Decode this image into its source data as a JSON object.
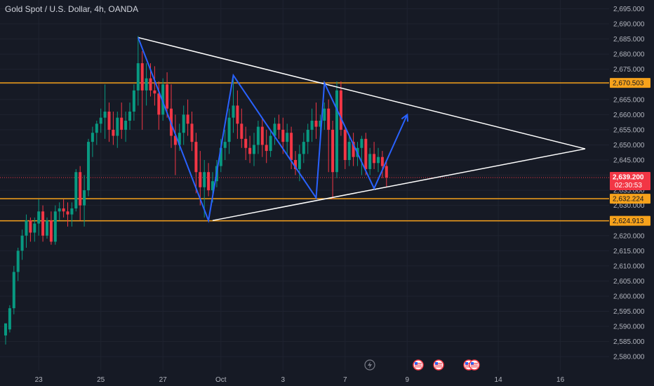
{
  "header": {
    "title": "Gold Spot / U.S. Dollar, 4h, OANDA"
  },
  "colors": {
    "background": "#161a25",
    "up": "#089981",
    "down": "#f23645",
    "level_line": "#f7a21b",
    "pattern_blue": "#2962ff",
    "triangle_white": "#ffffff",
    "axis_text": "#b2b5be"
  },
  "chart_data": {
    "type": "candlestick",
    "symbol": "Gold Spot / U.S. Dollar",
    "interval": "4h",
    "exchange": "OANDA",
    "ylim": [
      2578,
      2696
    ],
    "y_ticks": [
      "2,580.000",
      "2,585.000",
      "2,590.000",
      "2,595.000",
      "2,600.000",
      "2,605.000",
      "2,610.000",
      "2,615.000",
      "2,620.000",
      "2,625.000",
      "2,630.000",
      "2,635.000",
      "2,640.000",
      "2,645.000",
      "2,650.000",
      "2,655.000",
      "2,660.000",
      "2,665.000",
      "2,670.000",
      "2,675.000",
      "2,680.000",
      "2,685.000",
      "2,690.000",
      "2,695.000"
    ],
    "x_ticks": [
      {
        "label": "23",
        "bar": 8
      },
      {
        "label": "25",
        "bar": 23
      },
      {
        "label": "27",
        "bar": 38
      },
      {
        "label": "Oct",
        "bar": 52
      },
      {
        "label": "3",
        "bar": 67
      },
      {
        "label": "7",
        "bar": 82
      },
      {
        "label": "9",
        "bar": 97
      },
      {
        "label": "14",
        "bar": 119
      },
      {
        "label": "16",
        "bar": 134
      }
    ],
    "candles": [
      {
        "o": 2587,
        "h": 2590,
        "l": 2584,
        "c": 2591
      },
      {
        "o": 2589,
        "h": 2597,
        "l": 2588,
        "c": 2596
      },
      {
        "o": 2596,
        "h": 2610,
        "l": 2594,
        "c": 2608
      },
      {
        "o": 2608,
        "h": 2616,
        "l": 2605,
        "c": 2615
      },
      {
        "o": 2615,
        "h": 2622,
        "l": 2612,
        "c": 2620
      },
      {
        "o": 2620,
        "h": 2627,
        "l": 2616,
        "c": 2625
      },
      {
        "o": 2625,
        "h": 2626,
        "l": 2618,
        "c": 2621
      },
      {
        "o": 2621,
        "h": 2626,
        "l": 2618,
        "c": 2624
      },
      {
        "o": 2624,
        "h": 2632,
        "l": 2620,
        "c": 2628
      },
      {
        "o": 2628,
        "h": 2630,
        "l": 2618,
        "c": 2620
      },
      {
        "o": 2620,
        "h": 2626,
        "l": 2619,
        "c": 2625
      },
      {
        "o": 2625,
        "h": 2628,
        "l": 2617,
        "c": 2618
      },
      {
        "o": 2618,
        "h": 2630,
        "l": 2617,
        "c": 2628
      },
      {
        "o": 2628,
        "h": 2631,
        "l": 2625,
        "c": 2629
      },
      {
        "o": 2629,
        "h": 2632,
        "l": 2626,
        "c": 2628
      },
      {
        "o": 2628,
        "h": 2631,
        "l": 2623,
        "c": 2627
      },
      {
        "o": 2627,
        "h": 2631,
        "l": 2623,
        "c": 2629
      },
      {
        "o": 2629,
        "h": 2642,
        "l": 2628,
        "c": 2641
      },
      {
        "o": 2641,
        "h": 2643,
        "l": 2625,
        "c": 2630
      },
      {
        "o": 2630,
        "h": 2640,
        "l": 2623,
        "c": 2635
      },
      {
        "o": 2635,
        "h": 2652,
        "l": 2633,
        "c": 2651
      },
      {
        "o": 2651,
        "h": 2656,
        "l": 2646,
        "c": 2654
      },
      {
        "o": 2654,
        "h": 2658,
        "l": 2650,
        "c": 2657
      },
      {
        "o": 2657,
        "h": 2662,
        "l": 2654,
        "c": 2659
      },
      {
        "o": 2659,
        "h": 2670,
        "l": 2652,
        "c": 2661
      },
      {
        "o": 2661,
        "h": 2664,
        "l": 2651,
        "c": 2655
      },
      {
        "o": 2655,
        "h": 2661,
        "l": 2650,
        "c": 2653
      },
      {
        "o": 2653,
        "h": 2661,
        "l": 2649,
        "c": 2659
      },
      {
        "o": 2659,
        "h": 2664,
        "l": 2652,
        "c": 2655
      },
      {
        "o": 2655,
        "h": 2661,
        "l": 2651,
        "c": 2658
      },
      {
        "o": 2658,
        "h": 2664,
        "l": 2655,
        "c": 2661
      },
      {
        "o": 2661,
        "h": 2670,
        "l": 2658,
        "c": 2668
      },
      {
        "o": 2668,
        "h": 2686,
        "l": 2663,
        "c": 2677
      },
      {
        "o": 2677,
        "h": 2681,
        "l": 2655,
        "c": 2668
      },
      {
        "o": 2668,
        "h": 2677,
        "l": 2663,
        "c": 2672
      },
      {
        "o": 2672,
        "h": 2677,
        "l": 2666,
        "c": 2668
      },
      {
        "o": 2668,
        "h": 2676,
        "l": 2663,
        "c": 2667
      },
      {
        "o": 2667,
        "h": 2671,
        "l": 2655,
        "c": 2660
      },
      {
        "o": 2660,
        "h": 2672,
        "l": 2658,
        "c": 2670
      },
      {
        "o": 2670,
        "h": 2674,
        "l": 2659,
        "c": 2662
      },
      {
        "o": 2662,
        "h": 2670,
        "l": 2649,
        "c": 2653
      },
      {
        "o": 2653,
        "h": 2660,
        "l": 2640,
        "c": 2650
      },
      {
        "o": 2650,
        "h": 2657,
        "l": 2648,
        "c": 2654
      },
      {
        "o": 2654,
        "h": 2663,
        "l": 2650,
        "c": 2660
      },
      {
        "o": 2660,
        "h": 2665,
        "l": 2653,
        "c": 2657
      },
      {
        "o": 2657,
        "h": 2661,
        "l": 2648,
        "c": 2651
      },
      {
        "o": 2651,
        "h": 2654,
        "l": 2634,
        "c": 2641
      },
      {
        "o": 2641,
        "h": 2648,
        "l": 2630,
        "c": 2636
      },
      {
        "o": 2636,
        "h": 2645,
        "l": 2626,
        "c": 2641
      },
      {
        "o": 2641,
        "h": 2644,
        "l": 2633,
        "c": 2635
      },
      {
        "o": 2635,
        "h": 2641,
        "l": 2631,
        "c": 2638
      },
      {
        "o": 2638,
        "h": 2645,
        "l": 2636,
        "c": 2643
      },
      {
        "o": 2643,
        "h": 2652,
        "l": 2641,
        "c": 2649
      },
      {
        "o": 2649,
        "h": 2655,
        "l": 2645,
        "c": 2651
      },
      {
        "o": 2651,
        "h": 2662,
        "l": 2647,
        "c": 2659
      },
      {
        "o": 2659,
        "h": 2673,
        "l": 2654,
        "c": 2663
      },
      {
        "o": 2663,
        "h": 2668,
        "l": 2652,
        "c": 2657
      },
      {
        "o": 2657,
        "h": 2662,
        "l": 2649,
        "c": 2652
      },
      {
        "o": 2652,
        "h": 2656,
        "l": 2645,
        "c": 2649
      },
      {
        "o": 2649,
        "h": 2653,
        "l": 2644,
        "c": 2647
      },
      {
        "o": 2647,
        "h": 2654,
        "l": 2643,
        "c": 2650
      },
      {
        "o": 2650,
        "h": 2658,
        "l": 2647,
        "c": 2656
      },
      {
        "o": 2656,
        "h": 2659,
        "l": 2646,
        "c": 2650
      },
      {
        "o": 2650,
        "h": 2655,
        "l": 2644,
        "c": 2648
      },
      {
        "o": 2648,
        "h": 2655,
        "l": 2646,
        "c": 2653
      },
      {
        "o": 2653,
        "h": 2659,
        "l": 2650,
        "c": 2657
      },
      {
        "o": 2657,
        "h": 2660,
        "l": 2652,
        "c": 2655
      },
      {
        "o": 2655,
        "h": 2659,
        "l": 2647,
        "c": 2651
      },
      {
        "o": 2651,
        "h": 2657,
        "l": 2647,
        "c": 2654
      },
      {
        "o": 2654,
        "h": 2656,
        "l": 2642,
        "c": 2645
      },
      {
        "o": 2645,
        "h": 2648,
        "l": 2640,
        "c": 2642
      },
      {
        "o": 2642,
        "h": 2650,
        "l": 2638,
        "c": 2647
      },
      {
        "o": 2647,
        "h": 2654,
        "l": 2644,
        "c": 2651
      },
      {
        "o": 2651,
        "h": 2657,
        "l": 2647,
        "c": 2655
      },
      {
        "o": 2655,
        "h": 2662,
        "l": 2651,
        "c": 2658
      },
      {
        "o": 2658,
        "h": 2664,
        "l": 2652,
        "c": 2656
      },
      {
        "o": 2656,
        "h": 2660,
        "l": 2652,
        "c": 2658
      },
      {
        "o": 2658,
        "h": 2664,
        "l": 2655,
        "c": 2662
      },
      {
        "o": 2662,
        "h": 2665,
        "l": 2641,
        "c": 2655
      },
      {
        "o": 2655,
        "h": 2658,
        "l": 2632,
        "c": 2641
      },
      {
        "o": 2641,
        "h": 2671,
        "l": 2639,
        "c": 2668
      },
      {
        "o": 2668,
        "h": 2671,
        "l": 2653,
        "c": 2655
      },
      {
        "o": 2655,
        "h": 2656,
        "l": 2642,
        "c": 2645
      },
      {
        "o": 2645,
        "h": 2653,
        "l": 2643,
        "c": 2651
      },
      {
        "o": 2651,
        "h": 2654,
        "l": 2643,
        "c": 2646
      },
      {
        "o": 2646,
        "h": 2651,
        "l": 2643,
        "c": 2649
      },
      {
        "o": 2649,
        "h": 2653,
        "l": 2640,
        "c": 2652
      },
      {
        "o": 2652,
        "h": 2654,
        "l": 2640,
        "c": 2642
      },
      {
        "o": 2642,
        "h": 2649,
        "l": 2640,
        "c": 2647
      },
      {
        "o": 2647,
        "h": 2651,
        "l": 2642,
        "c": 2644
      },
      {
        "o": 2644,
        "h": 2649,
        "l": 2641,
        "c": 2646
      },
      {
        "o": 2646,
        "h": 2648,
        "l": 2639,
        "c": 2643
      },
      {
        "o": 2643,
        "h": 2645,
        "l": 2636,
        "c": 2639.2
      }
    ],
    "horizontal_levels": [
      {
        "price": 2670.503,
        "label": "2,670.503"
      },
      {
        "price": 2632.224,
        "label": "2,632.224"
      },
      {
        "price": 2624.913,
        "label": "2,624.913"
      }
    ],
    "current_price": {
      "price": 2639.2,
      "label": "2,639.200",
      "countdown": "02:30:53"
    },
    "triangle": {
      "upper": [
        {
          "bar": 32,
          "price": 2685.5
        },
        {
          "bar": 140,
          "price": 2648.7
        }
      ],
      "lower": [
        {
          "bar": 50,
          "price": 2625
        },
        {
          "bar": 140,
          "price": 2648.7
        }
      ]
    },
    "zigzag": [
      {
        "bar": 32,
        "price": 2685.5
      },
      {
        "bar": 49,
        "price": 2625
      },
      {
        "bar": 55,
        "price": 2673
      },
      {
        "bar": 75,
        "price": 2632.5
      },
      {
        "bar": 77,
        "price": 2670.5
      },
      {
        "bar": 89,
        "price": 2635.6
      },
      {
        "bar": 97,
        "price": 2660
      }
    ],
    "events_glyphs": [
      "lightning",
      "us-flag",
      "us-flag",
      "us-flag",
      "us-flag"
    ]
  }
}
